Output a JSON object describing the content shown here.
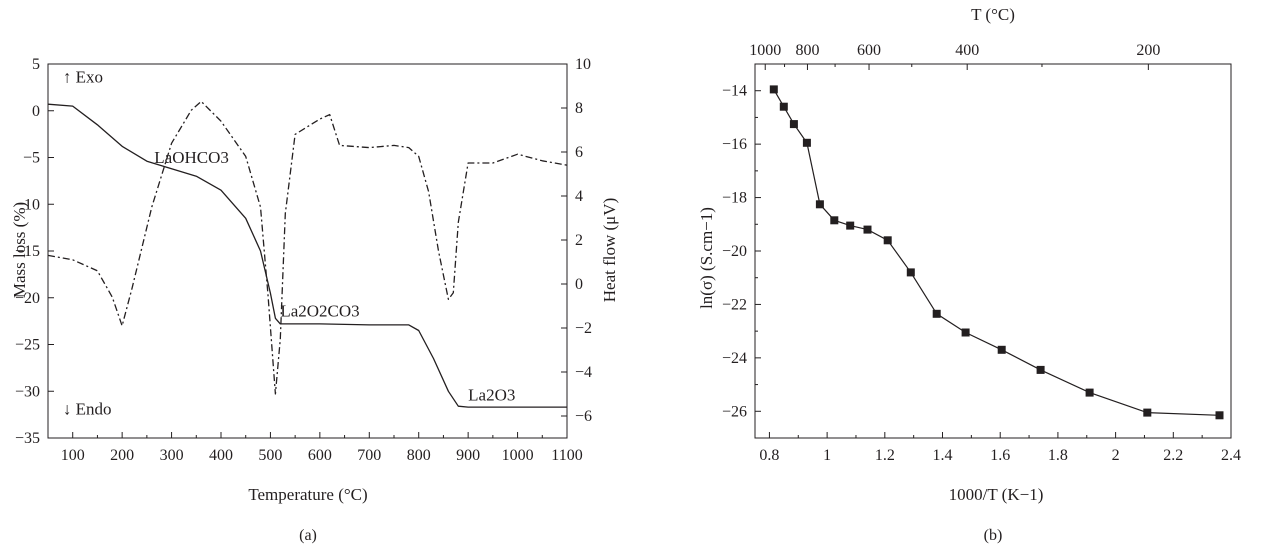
{
  "chart_data": [
    {
      "panel": "(a)",
      "type": "line",
      "xlabel": "Temperature (°C)",
      "ylabel_left": "Mass loss (%)",
      "ylabel_right": "Heat flow (μV)",
      "xlim": [
        50,
        1100
      ],
      "ylim_left": [
        -35,
        5
      ],
      "ylim_right": [
        -7,
        10
      ],
      "xticks": [
        100,
        200,
        300,
        400,
        500,
        600,
        700,
        800,
        900,
        1000,
        1100
      ],
      "yticks_left": [
        5,
        0,
        -5,
        -10,
        -15,
        -20,
        -25,
        -30,
        -35
      ],
      "yticks_right": [
        10,
        8,
        6,
        4,
        2,
        0,
        -2,
        -4,
        -6
      ],
      "annotations": [
        {
          "text": "↑ Exo",
          "x": 80,
          "y": 3.0
        },
        {
          "text": "↓ Endo",
          "x": 80,
          "y": -32.5
        },
        {
          "text": "LaOHCO3",
          "x": 265,
          "y": -5.6
        },
        {
          "text": "La2O2CO3",
          "x": 520,
          "y": -22.0
        },
        {
          "text": "La2O3",
          "x": 900,
          "y": -31.0
        }
      ],
      "series": [
        {
          "axis": "left",
          "style": "solid",
          "x": [
            50,
            100,
            150,
            200,
            250,
            300,
            350,
            400,
            450,
            480,
            500,
            510,
            520,
            600,
            700,
            780,
            800,
            830,
            860,
            880,
            900,
            1000,
            1100
          ],
          "y": [
            0.7,
            0.5,
            -1.5,
            -3.8,
            -5.4,
            -6.2,
            -7.0,
            -8.5,
            -11.5,
            -15.0,
            -19.5,
            -22.2,
            -22.8,
            -22.8,
            -22.9,
            -22.9,
            -23.5,
            -26.5,
            -30.0,
            -31.6,
            -31.7,
            -31.7,
            -31.7
          ]
        },
        {
          "axis": "right",
          "style": "dash-dot",
          "x": [
            50,
            100,
            150,
            180,
            200,
            220,
            260,
            300,
            340,
            360,
            400,
            450,
            480,
            495,
            510,
            520,
            530,
            550,
            600,
            620,
            640,
            700,
            750,
            780,
            800,
            820,
            840,
            860,
            870,
            880,
            900,
            950,
            1000,
            1050,
            1100
          ],
          "y": [
            1.3,
            1.1,
            0.6,
            -0.6,
            -1.9,
            -0.2,
            3.5,
            6.4,
            7.9,
            8.3,
            7.4,
            5.8,
            3.5,
            -0.5,
            -5.0,
            -2.5,
            3.2,
            6.8,
            7.5,
            7.7,
            6.3,
            6.2,
            6.3,
            6.2,
            5.8,
            4.2,
            1.5,
            -0.7,
            -0.4,
            2.8,
            5.5,
            5.5,
            5.9,
            5.6,
            5.4
          ]
        }
      ],
      "caption": "(a)"
    },
    {
      "panel": "(b)",
      "type": "scatter",
      "xlabel": "1000/T (K−1)",
      "ylabel": "ln(σ) (S.cm−1)",
      "top_axis_label": "T (°C)",
      "top_ticks": [
        "1000",
        "800",
        "600",
        "400",
        "200"
      ],
      "xlim": [
        0.75,
        2.4
      ],
      "ylim": [
        -27,
        -13
      ],
      "xticks": [
        0.8,
        1.0,
        1.2,
        1.4,
        1.6,
        1.8,
        2.0,
        2.2,
        2.4
      ],
      "yticks": [
        -14,
        -16,
        -18,
        -20,
        -22,
        -24,
        -26
      ],
      "markers": "filled-square-connected",
      "series": [
        {
          "x": [
            0.815,
            0.85,
            0.885,
            0.93,
            0.975,
            1.025,
            1.08,
            1.14,
            1.21,
            1.29,
            1.38,
            1.48,
            1.605,
            1.74,
            1.91,
            2.11,
            2.36
          ],
          "y": [
            -13.95,
            -14.6,
            -15.25,
            -15.95,
            -18.25,
            -18.85,
            -19.05,
            -19.2,
            -19.6,
            -20.8,
            -22.35,
            -23.05,
            -23.7,
            -24.45,
            -25.3,
            -26.05,
            -26.15
          ]
        }
      ],
      "caption": "(b)"
    }
  ]
}
